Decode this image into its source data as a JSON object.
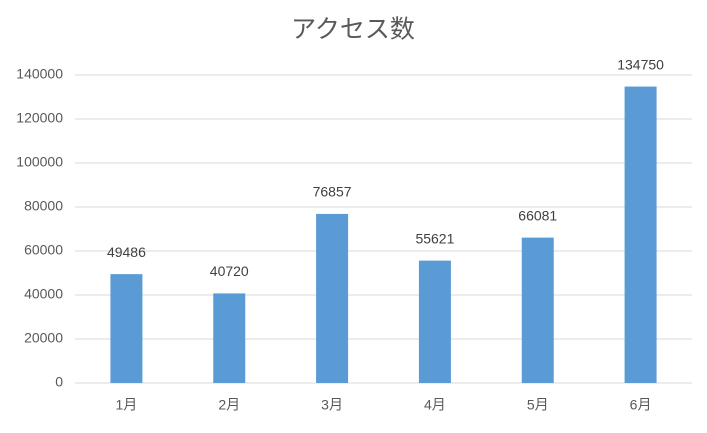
{
  "chart_data": {
    "type": "bar",
    "title": "アクセス数",
    "categories": [
      "1月",
      "2月",
      "3月",
      "4月",
      "5月",
      "6月"
    ],
    "values": [
      49486,
      40720,
      76857,
      55621,
      66081,
      134750
    ],
    "color": "#5b9bd5",
    "ylim": [
      0,
      140000
    ],
    "yticks": [
      0,
      20000,
      40000,
      60000,
      80000,
      100000,
      120000,
      140000
    ],
    "grid": true
  }
}
